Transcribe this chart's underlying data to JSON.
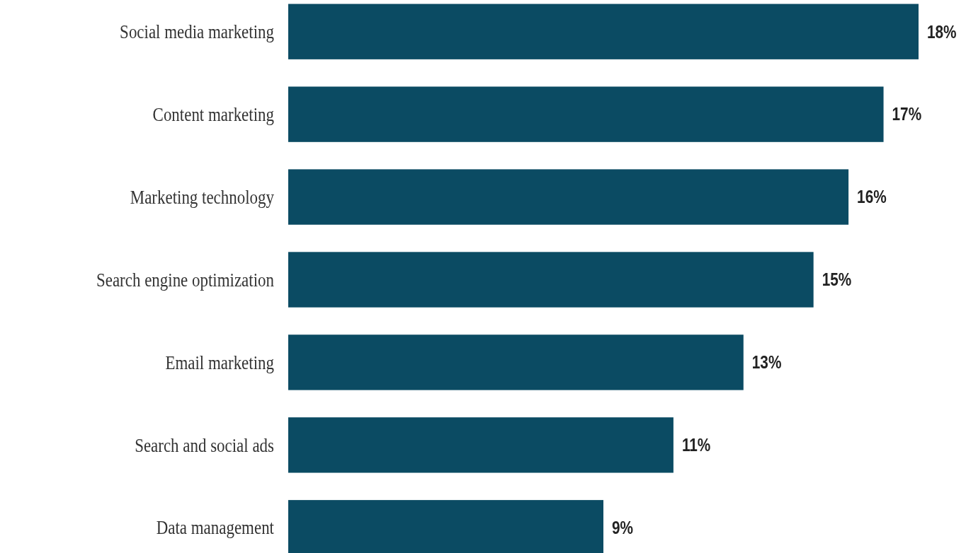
{
  "chart_data": {
    "type": "bar",
    "orientation": "horizontal",
    "categories": [
      "Social media marketing",
      "Content marketing",
      "Marketing technology",
      "Search engine optimization",
      "Email marketing",
      "Search and social ads",
      "Data management"
    ],
    "values": [
      18,
      17,
      16,
      15,
      13,
      11,
      9
    ],
    "value_labels": [
      "18%",
      "17%",
      "16%",
      "15%",
      "13%",
      "11%",
      "9%"
    ],
    "color": "#0b4b63"
  }
}
